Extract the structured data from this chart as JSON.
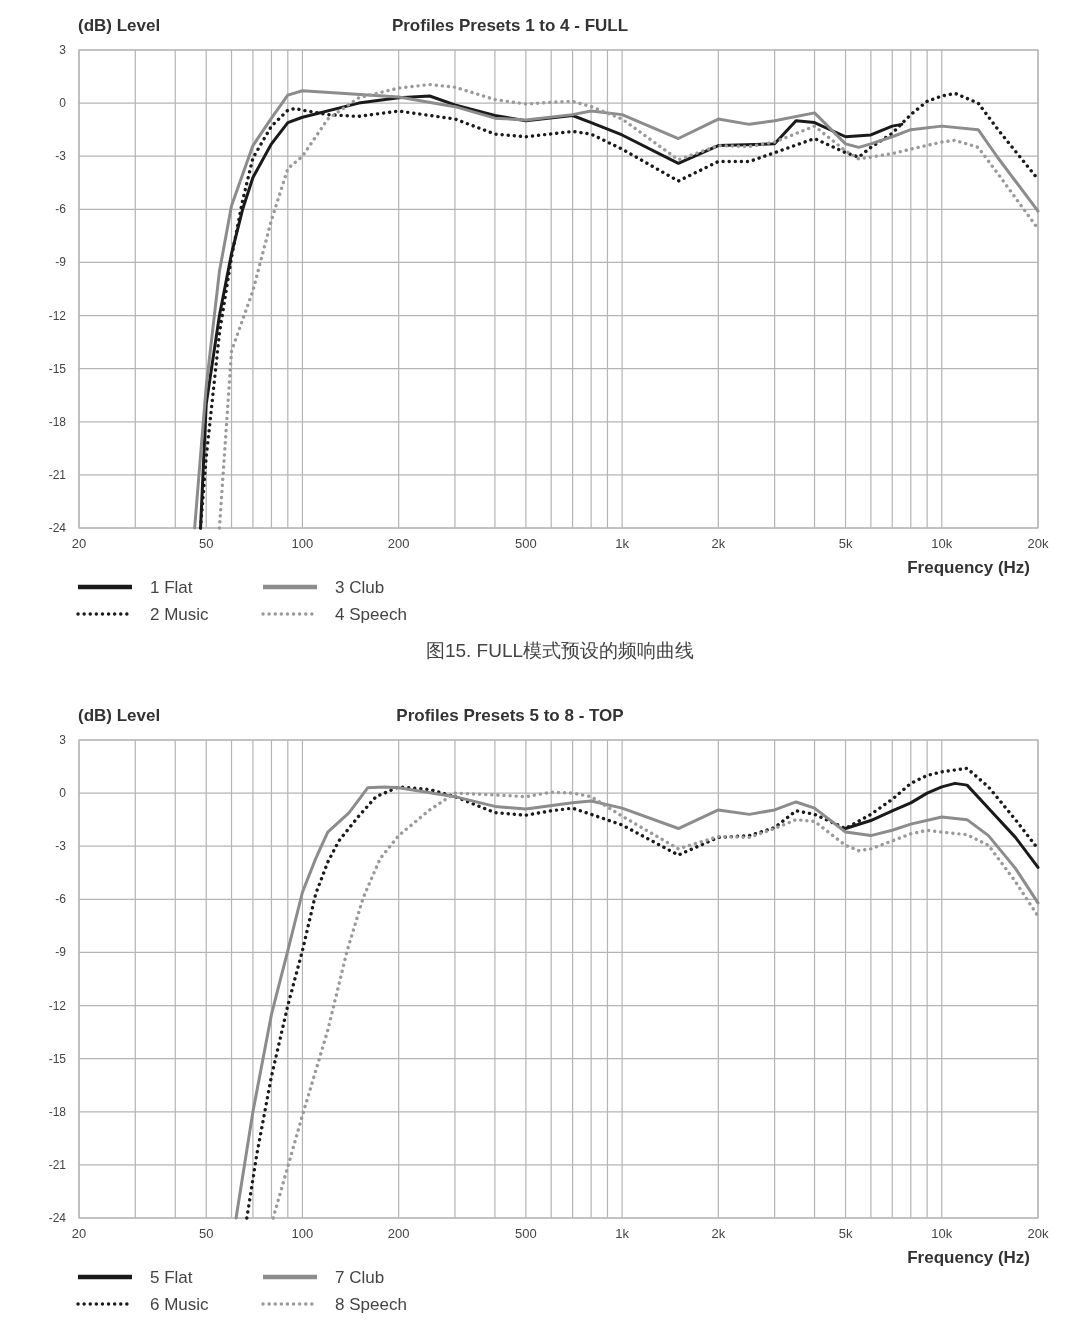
{
  "chart_data": [
    {
      "type": "line",
      "title": "Profiles Presets 1 to 4 - FULL",
      "ylabel": "(dB) Level",
      "xlabel": "Frequency (Hz)",
      "log": "x",
      "grid": true,
      "legend": "bottom left",
      "xlim": [
        20,
        20000
      ],
      "ylim": [
        -24,
        3
      ],
      "xticks": [
        20,
        {
          "value": 30,
          "label": null
        },
        {
          "value": 40,
          "label": null
        },
        50,
        {
          "value": 60,
          "label": null
        },
        {
          "value": 70,
          "label": null
        },
        {
          "value": 80,
          "label": null
        },
        {
          "value": 90,
          "label": null
        },
        100,
        200,
        {
          "value": 300,
          "label": null
        },
        {
          "value": 400,
          "label": null
        },
        500,
        {
          "value": 600,
          "label": null
        },
        {
          "value": 700,
          "label": null
        },
        {
          "value": 800,
          "label": null
        },
        {
          "value": 900,
          "label": null
        },
        {
          "value": 1000,
          "label": "1k"
        },
        {
          "value": 2000,
          "label": "2k"
        },
        {
          "value": 3000,
          "label": null
        },
        {
          "value": 4000,
          "label": null
        },
        {
          "value": 5000,
          "label": "5k"
        },
        {
          "value": 6000,
          "label": null
        },
        {
          "value": 7000,
          "label": null
        },
        {
          "value": 8000,
          "label": null
        },
        {
          "value": 9000,
          "label": null
        },
        {
          "value": 10000,
          "label": "10k"
        },
        {
          "value": 20000,
          "label": "20k"
        }
      ],
      "yticks": [
        3,
        0,
        -3,
        -6,
        -9,
        -12,
        -15,
        -18,
        -21,
        -24
      ],
      "annotations": [
        "图15. FULL模式预设的频响曲线"
      ],
      "series": [
        {
          "name": "1 Flat",
          "color": "#1a1a1a",
          "line_style": "solid",
          "x": [
            48,
            50,
            55,
            60,
            65,
            70,
            80,
            90,
            100,
            150,
            200,
            250,
            300,
            400,
            500,
            700,
            800,
            1000,
            1500,
            2000,
            3000,
            3500,
            4000,
            5000,
            6000,
            7000,
            7500
          ],
          "values": [
            -24,
            -17,
            -12,
            -8.5,
            -6,
            -4.2,
            -2.3,
            -1.1,
            -0.8,
            0,
            0.3,
            0.4,
            -0.1,
            -0.7,
            -1,
            -0.7,
            -1.1,
            -1.8,
            -3.4,
            -2.4,
            -2.3,
            -1,
            -1.1,
            -1.9,
            -1.8,
            -1.3,
            -1.2
          ]
        },
        {
          "name": "2 Music",
          "color": "#1a1a1a",
          "line_style": "dotted",
          "x": [
            48,
            50,
            55,
            60,
            65,
            70,
            80,
            90,
            95,
            100,
            120,
            150,
            200,
            300,
            400,
            500,
            700,
            800,
            1000,
            1500,
            2000,
            2500,
            3000,
            4000,
            5000,
            5500,
            6000,
            7000,
            8000,
            9000,
            10000,
            11000,
            13000,
            15000,
            20000
          ],
          "values": [
            -24,
            -20,
            -13,
            -8.7,
            -5.5,
            -3.1,
            -1.3,
            -0.4,
            -0.3,
            -0.4,
            -0.65,
            -0.75,
            -0.45,
            -0.9,
            -1.75,
            -1.9,
            -1.6,
            -1.75,
            -2.6,
            -4.4,
            -3.3,
            -3.3,
            -2.8,
            -2,
            -2.8,
            -3.05,
            -2.5,
            -1.7,
            -0.65,
            0.1,
            0.4,
            0.55,
            0,
            -1.5,
            -4.3
          ]
        },
        {
          "name": "3 Club",
          "color": "#8c8c8c",
          "line_style": "solid",
          "x": [
            46,
            50,
            55,
            60,
            70,
            80,
            90,
            100,
            200,
            300,
            400,
            500,
            700,
            800,
            1000,
            1500,
            2000,
            2500,
            3000,
            4000,
            5000,
            5500,
            6000,
            7000,
            8000,
            10000,
            13000,
            15000,
            20000
          ],
          "values": [
            -24,
            -16,
            -9.5,
            -5.8,
            -2.4,
            -0.85,
            0.45,
            0.7,
            0.35,
            -0.2,
            -0.85,
            -0.95,
            -0.65,
            -0.45,
            -0.65,
            -2,
            -0.9,
            -1.2,
            -1,
            -0.55,
            -2.3,
            -2.5,
            -2.3,
            -1.9,
            -1.5,
            -1.3,
            -1.5,
            -3.1,
            -6.1
          ]
        },
        {
          "name": "4 Speech",
          "color": "#9a9a9a",
          "line_style": "dotted",
          "x": [
            55,
            60,
            70,
            80,
            90,
            100,
            120,
            150,
            200,
            250,
            300,
            400,
            500,
            600,
            700,
            800,
            1000,
            1500,
            2000,
            2500,
            3000,
            4000,
            5000,
            5500,
            6000,
            7000,
            8000,
            10000,
            11000,
            13000,
            15000,
            20000
          ],
          "values": [
            -24,
            -14,
            -10.6,
            -6.6,
            -3.7,
            -3,
            -0.9,
            0.3,
            0.85,
            1.05,
            0.9,
            0.2,
            -0.05,
            0.05,
            0.1,
            -0.2,
            -0.9,
            -3.2,
            -2.4,
            -2.45,
            -2.2,
            -1.3,
            -2.7,
            -3.15,
            -3.05,
            -2.85,
            -2.6,
            -2.2,
            -2.1,
            -2.5,
            -4,
            -7.1
          ]
        }
      ]
    },
    {
      "type": "line",
      "title": "Profiles Presets 5 to 8 - TOP",
      "ylabel": "(dB) Level",
      "xlabel": "Frequency (Hz)",
      "log": "x",
      "grid": true,
      "legend": "bottom left",
      "xlim": [
        20,
        20000
      ],
      "ylim": [
        -24,
        3
      ],
      "xticks": [
        20,
        {
          "value": 30,
          "label": null
        },
        {
          "value": 40,
          "label": null
        },
        50,
        {
          "value": 60,
          "label": null
        },
        {
          "value": 70,
          "label": null
        },
        {
          "value": 80,
          "label": null
        },
        {
          "value": 90,
          "label": null
        },
        100,
        200,
        {
          "value": 300,
          "label": null
        },
        {
          "value": 400,
          "label": null
        },
        500,
        {
          "value": 600,
          "label": null
        },
        {
          "value": 700,
          "label": null
        },
        {
          "value": 800,
          "label": null
        },
        {
          "value": 900,
          "label": null
        },
        {
          "value": 1000,
          "label": "1k"
        },
        {
          "value": 2000,
          "label": "2k"
        },
        {
          "value": 3000,
          "label": null
        },
        {
          "value": 4000,
          "label": null
        },
        {
          "value": 5000,
          "label": "5k"
        },
        {
          "value": 6000,
          "label": null
        },
        {
          "value": 7000,
          "label": null
        },
        {
          "value": 8000,
          "label": null
        },
        {
          "value": 9000,
          "label": null
        },
        {
          "value": 10000,
          "label": "10k"
        },
        {
          "value": 20000,
          "label": "20k"
        }
      ],
      "yticks": [
        3,
        0,
        -3,
        -6,
        -9,
        -12,
        -15,
        -18,
        -21,
        -24
      ],
      "series": [
        {
          "name": "5 Flat",
          "color": "#1a1a1a",
          "line_style": "solid",
          "x": [
            5000,
            6000,
            7000,
            8000,
            9000,
            10000,
            11000,
            12000,
            14000,
            17000,
            20000
          ],
          "values": [
            -2,
            -1.55,
            -1,
            -0.55,
            0,
            0.35,
            0.55,
            0.45,
            -0.85,
            -2.5,
            -4.2
          ]
        },
        {
          "name": "6 Music",
          "color": "#1a1a1a",
          "line_style": "dotted",
          "x": [
            67,
            72,
            80,
            90,
            100,
            110,
            120,
            130,
            150,
            170,
            200,
            250,
            300,
            400,
            500,
            600,
            700,
            800,
            1000,
            1500,
            2000,
            2500,
            3000,
            3500,
            4000,
            5000,
            6000,
            7000,
            8000,
            9000,
            10000,
            12000,
            14000,
            17000,
            20000
          ],
          "values": [
            -24,
            -20.4,
            -16,
            -12,
            -8.9,
            -5.7,
            -3.9,
            -2.7,
            -1.3,
            -0.2,
            0.35,
            0.2,
            -0.2,
            -1.1,
            -1.25,
            -1,
            -0.85,
            -1.2,
            -1.8,
            -3.5,
            -2.5,
            -2.4,
            -1.95,
            -1,
            -1.2,
            -2,
            -1.2,
            -0.35,
            0.55,
            1,
            1.2,
            1.4,
            0.35,
            -1.5,
            -3.15
          ]
        },
        {
          "name": "7 Club",
          "color": "#8c8c8c",
          "line_style": "solid",
          "x": [
            62,
            70,
            80,
            90,
            100,
            110,
            120,
            140,
            160,
            180,
            200,
            300,
            400,
            500,
            700,
            800,
            1000,
            1500,
            2000,
            2500,
            3000,
            3500,
            4000,
            5000,
            6000,
            7000,
            8000,
            10000,
            12000,
            14000,
            17000,
            20000
          ],
          "values": [
            -24,
            -18,
            -12.5,
            -8.9,
            -5.6,
            -3.7,
            -2.2,
            -1.1,
            0.3,
            0.35,
            0.3,
            -0.2,
            -0.75,
            -0.9,
            -0.55,
            -0.45,
            -0.85,
            -2,
            -0.95,
            -1.2,
            -0.95,
            -0.5,
            -0.85,
            -2.2,
            -2.4,
            -2.1,
            -1.75,
            -1.35,
            -1.5,
            -2.4,
            -4.25,
            -6.2
          ]
        },
        {
          "name": "8 Speech",
          "color": "#9a9a9a",
          "line_style": "dotted",
          "x": [
            81,
            100,
            120,
            138,
            155,
            175,
            200,
            250,
            300,
            400,
            500,
            600,
            700,
            800,
            1000,
            1500,
            2000,
            2500,
            3000,
            3500,
            4000,
            5000,
            5500,
            6000,
            7000,
            8000,
            9000,
            10000,
            12000,
            14000,
            17000,
            20000
          ],
          "values": [
            -24,
            -18.2,
            -13.4,
            -8.9,
            -5.9,
            -3.7,
            -2.4,
            -0.95,
            0,
            -0.1,
            -0.2,
            0.05,
            0,
            -0.2,
            -1.3,
            -3.15,
            -2.45,
            -2.5,
            -2,
            -1.5,
            -1.6,
            -2.95,
            -3.25,
            -3.15,
            -2.7,
            -2.3,
            -2.1,
            -2.2,
            -2.35,
            -2.95,
            -5,
            -6.95
          ]
        }
      ]
    }
  ]
}
